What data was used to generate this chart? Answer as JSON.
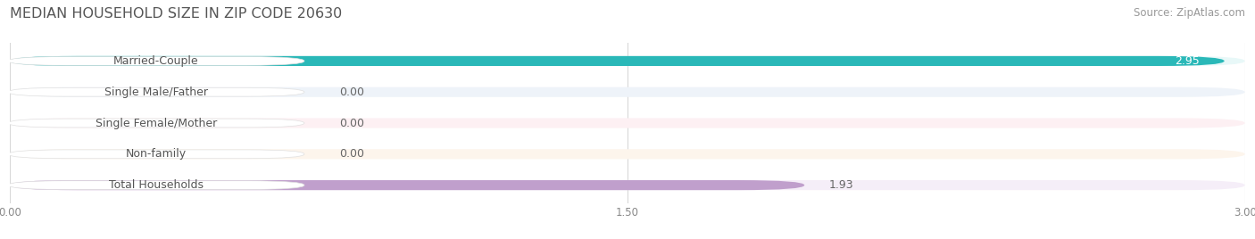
{
  "title": "MEDIAN HOUSEHOLD SIZE IN ZIP CODE 20630",
  "source": "Source: ZipAtlas.com",
  "categories": [
    "Married-Couple",
    "Single Male/Father",
    "Single Female/Mother",
    "Non-family",
    "Total Households"
  ],
  "values": [
    2.95,
    0.0,
    0.0,
    0.0,
    1.93
  ],
  "bar_colors": [
    "#2ab8b8",
    "#9db8df",
    "#f2909f",
    "#f5c98a",
    "#c09fcc"
  ],
  "bar_bg_colors": [
    "#e8f8f8",
    "#eef3f9",
    "#fdf0f3",
    "#fdf5ec",
    "#f5eef8"
  ],
  "xlim": [
    0,
    3.0
  ],
  "xticks": [
    0.0,
    1.5,
    3.0
  ],
  "xtick_labels": [
    "0.00",
    "1.50",
    "3.00"
  ],
  "value_labels": [
    "2.95",
    "0.00",
    "0.00",
    "0.00",
    "1.93"
  ],
  "background_color": "#ffffff",
  "bar_height": 0.32,
  "title_fontsize": 11.5,
  "label_fontsize": 9,
  "value_fontsize": 9,
  "source_fontsize": 8.5,
  "grid_color": "#d8d8d8",
  "text_color": "#555555",
  "value_color_inside": "#ffffff",
  "value_color_outside": "#666666"
}
